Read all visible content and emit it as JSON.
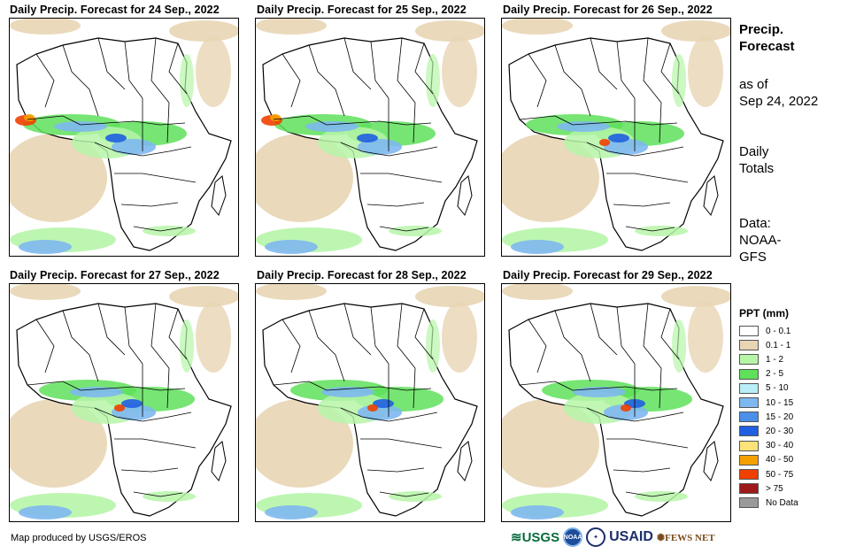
{
  "panels": [
    {
      "title": "Daily Precip. Forecast for 24 Sep., 2022"
    },
    {
      "title": "Daily Precip. Forecast for 25 Sep., 2022"
    },
    {
      "title": "Daily Precip. Forecast for 26 Sep., 2022"
    },
    {
      "title": "Daily Precip. Forecast for 27 Sep., 2022"
    },
    {
      "title": "Daily Precip. Forecast for 28 Sep., 2022"
    },
    {
      "title": "Daily Precip. Forecast for 29 Sep., 2022"
    }
  ],
  "side": {
    "title_line1": "Precip.",
    "title_line2": "Forecast",
    "asof_line1": "as of",
    "asof_line2": "Sep 24, 2022",
    "totals_line1": "Daily",
    "totals_line2": "Totals",
    "data_line1": "Data:",
    "data_line2": "NOAA-",
    "data_line3": "GFS"
  },
  "legend": {
    "title": "PPT (mm)",
    "items": [
      {
        "label": "0 - 0.1",
        "color": "#ffffff"
      },
      {
        "label": "0.1 - 1",
        "color": "#e8d5b4"
      },
      {
        "label": "1 - 2",
        "color": "#b6f5a8"
      },
      {
        "label": "2 - 5",
        "color": "#5ee05a"
      },
      {
        "label": "5 - 10",
        "color": "#b8eef6"
      },
      {
        "label": "10 - 15",
        "color": "#7eb8f0"
      },
      {
        "label": "15 - 20",
        "color": "#4a8fe8"
      },
      {
        "label": "20 - 30",
        "color": "#1f5fe0"
      },
      {
        "label": "30 - 40",
        "color": "#fde27a"
      },
      {
        "label": "40 - 50",
        "color": "#f5a000"
      },
      {
        "label": "50 - 75",
        "color": "#f04000"
      },
      {
        "label": "> 75",
        "color": "#9e1a1a"
      },
      {
        "label": "No Data",
        "color": "#9a9a9a"
      }
    ]
  },
  "footer": "Map produced by USGS/EROS",
  "logos": {
    "usgs": "USGS",
    "noaa": "NOAA",
    "usaid": "USAID",
    "fews": "FEWS NET"
  }
}
